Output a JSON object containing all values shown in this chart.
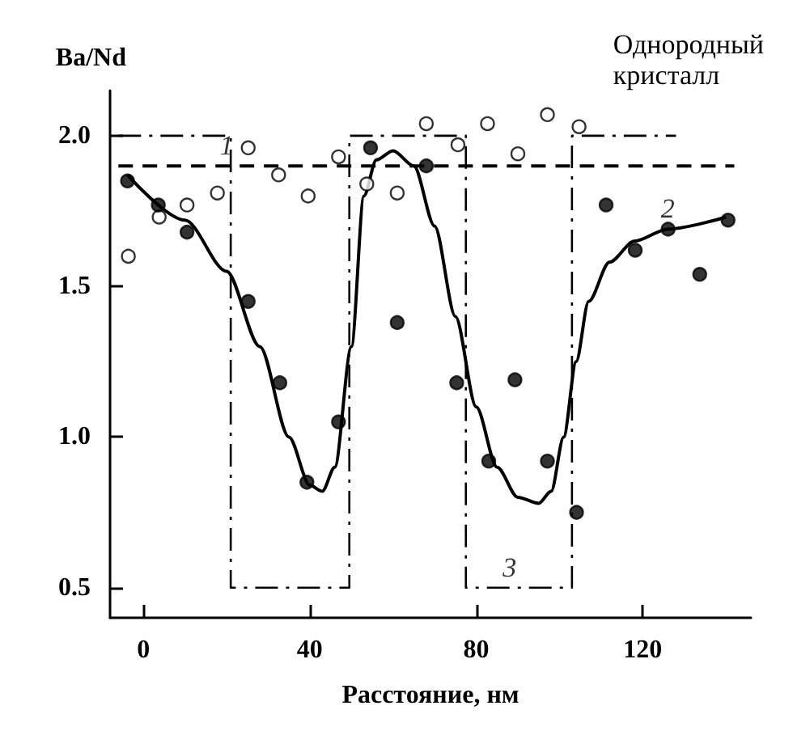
{
  "chart_data": {
    "type": "scatter",
    "ylabel": "Ba/Nd",
    "xlabel": "Расстояние, нм",
    "xlim": [
      -8,
      146
    ],
    "ylim": [
      0.4,
      2.15
    ],
    "xticks": [
      0,
      40,
      80,
      120
    ],
    "yticks": [
      0.5,
      {
        "value": 1,
        "label": "1.0"
      },
      1.5,
      {
        "value": 2,
        "label": "2.0"
      }
    ],
    "grid": false,
    "series": [
      {
        "color": "#ffffff",
        "marker": "circle",
        "x": [
          -3.6,
          3.8,
          10.5,
          17.8,
          25.2,
          32.5,
          39.6,
          46.9,
          53.7,
          61,
          68,
          75.6,
          82.7,
          90,
          97.1,
          104.7
        ],
        "values": [
          1.6,
          1.73,
          1.77,
          1.81,
          1.96,
          1.87,
          1.8,
          1.93,
          1.84,
          1.81,
          2.04,
          1.97,
          2.04,
          1.94,
          2.07,
          2.03
        ]
      },
      {
        "color": "#000000",
        "marker": "circle",
        "x": [
          -3.8,
          3.6,
          10.5,
          25.2,
          32.8,
          39.3,
          46.9,
          54.6,
          61,
          68,
          75.3,
          83,
          89.3,
          97.1,
          104.1,
          111.2,
          118.2,
          126.1,
          133.7,
          140.5
        ],
        "values": [
          1.85,
          1.77,
          1.68,
          1.45,
          1.18,
          0.85,
          1.05,
          1.96,
          1.38,
          1.9,
          1.18,
          0.92,
          1.19,
          0.92,
          0.75,
          1.77,
          1.62,
          1.69,
          1.54,
          1.72
        ]
      },
      {
        "type": "line",
        "color": "#000000",
        "marker": "none",
        "line_style": "solid",
        "x": [
          -3.8,
          10,
          20,
          28,
          35,
          40,
          43,
          46,
          50,
          53,
          56,
          60,
          65,
          70,
          75,
          80,
          85,
          90,
          95,
          98,
          101,
          104,
          107,
          112,
          118,
          126,
          140
        ],
        "values": [
          1.87,
          1.72,
          1.55,
          1.3,
          1.0,
          0.84,
          0.82,
          0.9,
          1.3,
          1.8,
          1.92,
          1.95,
          1.9,
          1.7,
          1.4,
          1.1,
          0.9,
          0.8,
          0.78,
          0.82,
          1.0,
          1.25,
          1.45,
          1.58,
          1.65,
          1.69,
          1.73
        ]
      },
      {
        "type": "line",
        "color": "#000000",
        "marker": "none",
        "line_style": "dashed",
        "x": [
          -6,
          142
        ],
        "values": [
          1.9,
          1.9
        ]
      },
      {
        "type": "step",
        "color": "#000000",
        "marker": "none",
        "line_style": "dotted",
        "x": [
          -6,
          21,
          49.5,
          77.5,
          103,
          128
        ],
        "values": [
          2.0,
          0.5,
          2.0,
          0.5,
          2.0,
          2.0
        ]
      }
    ],
    "annotations": [
      {
        "text": "1",
        "x": 20,
        "y": 1.9
      },
      {
        "text": "2",
        "x": 126,
        "y": 1.69
      },
      {
        "text": "3",
        "x": 88,
        "y": 0.5
      },
      "Однородный кристалл"
    ]
  }
}
